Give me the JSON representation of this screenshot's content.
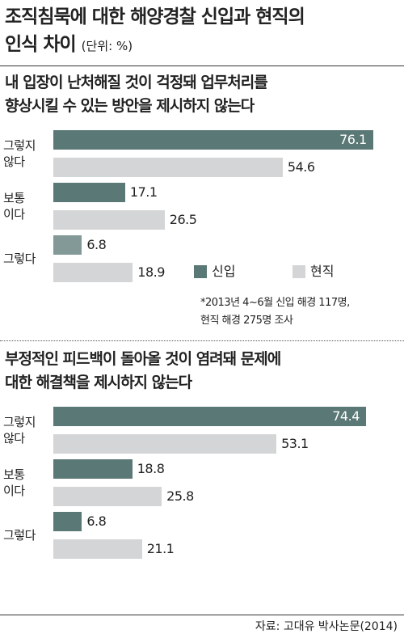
{
  "title_line1": "조직침묵에 대한 해양경찰 신입과 현직의",
  "title_line2": "인식 차이",
  "unit": "(단위: %)",
  "legend": [
    {
      "label": "신입",
      "color": "#5a7875"
    },
    {
      "label": "현직",
      "color": "#d4d5d6"
    }
  ],
  "note_line1": "*2013년 4~6월 신입 해경 117명,",
  "note_line2": "현직 해경 275명 조사",
  "source": "자료: 고대유 박사논문(2014)",
  "chart_data": [
    {
      "type": "bar",
      "orientation": "horizontal",
      "title_lines": [
        "내 입장이 난처해질 것이 걱정돼 업무처리를",
        "향상시킬 수 있는 방안을 제시하지 않는다"
      ],
      "categories": [
        [
          "그렇지",
          "않다"
        ],
        [
          "보통",
          "이다"
        ],
        [
          "그렇다"
        ]
      ],
      "series": [
        {
          "name": "신입",
          "values": [
            76.1,
            17.1,
            6.8
          ]
        },
        {
          "name": "현직",
          "values": [
            54.6,
            26.5,
            18.9
          ]
        }
      ],
      "xlim": [
        0,
        80
      ]
    },
    {
      "type": "bar",
      "orientation": "horizontal",
      "title_lines": [
        "부정적인 피드백이 돌아올 것이 염려돼 문제에",
        "대한 해결책을 제시하지 않는다"
      ],
      "categories": [
        [
          "그렇지",
          "않다"
        ],
        [
          "보통",
          "이다"
        ],
        [
          "그렇다"
        ]
      ],
      "series": [
        {
          "name": "신입",
          "values": [
            74.4,
            18.8,
            6.8
          ]
        },
        {
          "name": "현직",
          "values": [
            53.1,
            25.8,
            21.1
          ]
        }
      ],
      "xlim": [
        0,
        80
      ]
    }
  ]
}
